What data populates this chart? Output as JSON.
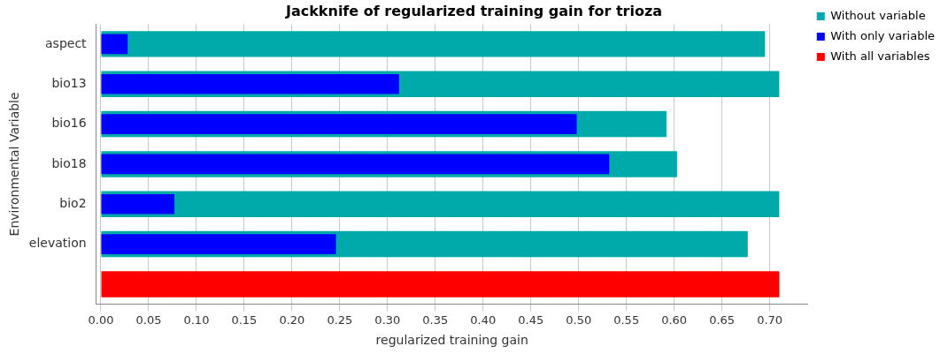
{
  "chart_data": {
    "type": "bar",
    "orientation": "horizontal",
    "title": "Jackknife of regularized training gain for trioza",
    "xlabel": "regularized training gain",
    "ylabel": "Environmental Variable",
    "categories": [
      "aspect",
      "bio13",
      "bio16",
      "bio18",
      "bio2",
      "elevation",
      null
    ],
    "series": [
      {
        "name": "Without variable",
        "color": "#00aaaa",
        "values": [
          0.695,
          0.71,
          0.592,
          0.603,
          0.71,
          0.677,
          null
        ]
      },
      {
        "name": "With only variable",
        "color": "#0000ff",
        "values": [
          0.028,
          0.312,
          0.498,
          0.532,
          0.077,
          0.246,
          null
        ]
      },
      {
        "name": "With all variables",
        "color": "#ff0000",
        "values": [
          null,
          null,
          null,
          null,
          null,
          null,
          0.71
        ]
      }
    ],
    "xlim": [
      -0.005,
      0.74
    ],
    "xticks": [
      {
        "value": 0,
        "label": "0.00"
      },
      {
        "value": 0.05,
        "label": "0.05"
      },
      {
        "value": 0.1,
        "label": "0.10"
      },
      {
        "value": 0.15,
        "label": "0.15"
      },
      {
        "value": 0.2,
        "label": "0.20"
      },
      {
        "value": 0.25,
        "label": "0.25"
      },
      {
        "value": 0.3,
        "label": "0.30"
      },
      {
        "value": 0.35,
        "label": "0.35"
      },
      {
        "value": 0.4,
        "label": "0.40"
      },
      {
        "value": 0.45,
        "label": "0.45"
      },
      {
        "value": 0.5,
        "label": "0.50"
      },
      {
        "value": 0.55,
        "label": "0.55"
      },
      {
        "value": 0.6,
        "label": "0.60"
      },
      {
        "value": 0.65,
        "label": "0.65"
      },
      {
        "value": 0.7,
        "label": "0.70"
      }
    ],
    "grid": "x",
    "legend": "top right"
  }
}
